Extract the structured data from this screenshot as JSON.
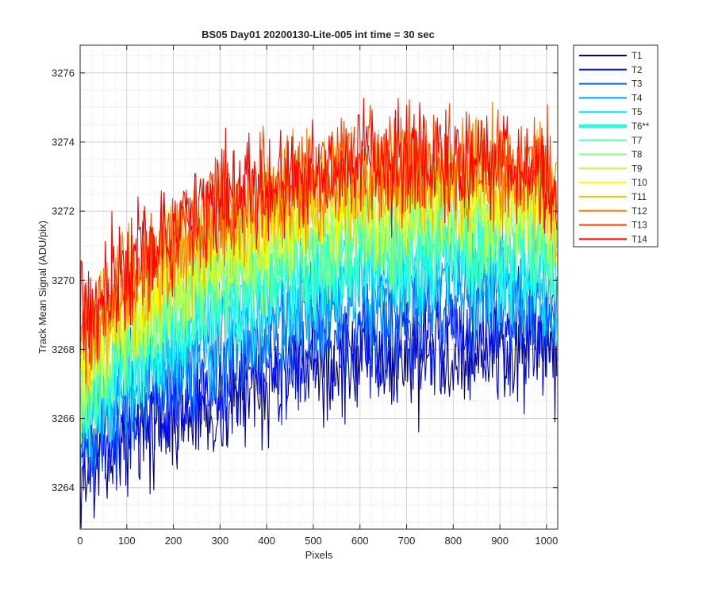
{
  "chart_data": {
    "type": "line",
    "title": "BS05 Day01 20200130-Lite-005 int time = 30 sec",
    "xlabel": "Pixels",
    "ylabel": "Track Mean Signal (ADU/pix)",
    "xlim": [
      0,
      1024
    ],
    "ylim": [
      3262.8,
      3276.8
    ],
    "x_ticks": [
      0,
      100,
      200,
      300,
      400,
      500,
      600,
      700,
      800,
      900,
      1000
    ],
    "y_ticks": [
      3264,
      3266,
      3268,
      3270,
      3272,
      3274,
      3276
    ],
    "grid": true,
    "minor_grid": true,
    "legend_position": "outside-top-right",
    "highlighted_series": "T6**",
    "series": [
      {
        "name": "T1",
        "color": "#00008f",
        "values": [
          [
            0,
            3264.3
          ],
          [
            100,
            3265.6
          ],
          [
            200,
            3266.0
          ],
          [
            300,
            3266.3
          ],
          [
            400,
            3267.1
          ],
          [
            500,
            3267.3
          ],
          [
            600,
            3267.6
          ],
          [
            700,
            3267.8
          ],
          [
            800,
            3268.0
          ],
          [
            900,
            3267.9
          ],
          [
            1000,
            3267.8
          ],
          [
            1023,
            3267.6
          ]
        ]
      },
      {
        "name": "T2",
        "color": "#0010ff",
        "values": [
          [
            0,
            3264.8
          ],
          [
            100,
            3266.0
          ],
          [
            200,
            3266.4
          ],
          [
            300,
            3266.8
          ],
          [
            400,
            3267.6
          ],
          [
            500,
            3267.9
          ],
          [
            600,
            3268.2
          ],
          [
            700,
            3268.4
          ],
          [
            800,
            3268.6
          ],
          [
            900,
            3268.5
          ],
          [
            1000,
            3268.4
          ],
          [
            1023,
            3268.2
          ]
        ]
      },
      {
        "name": "T3",
        "color": "#0060ff",
        "values": [
          [
            0,
            3265.2
          ],
          [
            100,
            3266.6
          ],
          [
            200,
            3267.3
          ],
          [
            300,
            3267.8
          ],
          [
            400,
            3268.5
          ],
          [
            500,
            3268.8
          ],
          [
            600,
            3269.0
          ],
          [
            700,
            3269.2
          ],
          [
            800,
            3269.4
          ],
          [
            900,
            3269.3
          ],
          [
            1000,
            3269.2
          ],
          [
            1023,
            3269.0
          ]
        ]
      },
      {
        "name": "T4",
        "color": "#00a0ff",
        "values": [
          [
            0,
            3265.6
          ],
          [
            100,
            3267.0
          ],
          [
            200,
            3267.8
          ],
          [
            300,
            3268.4
          ],
          [
            400,
            3269.0
          ],
          [
            500,
            3269.3
          ],
          [
            600,
            3269.6
          ],
          [
            700,
            3269.8
          ],
          [
            800,
            3269.9
          ],
          [
            900,
            3269.8
          ],
          [
            1000,
            3269.7
          ],
          [
            1023,
            3269.4
          ]
        ]
      },
      {
        "name": "T5",
        "color": "#00dfff",
        "values": [
          [
            0,
            3265.9
          ],
          [
            100,
            3267.5
          ],
          [
            200,
            3268.3
          ],
          [
            300,
            3269.0
          ],
          [
            400,
            3269.6
          ],
          [
            500,
            3270.0
          ],
          [
            600,
            3270.3
          ],
          [
            700,
            3270.4
          ],
          [
            800,
            3270.5
          ],
          [
            900,
            3270.4
          ],
          [
            1000,
            3270.2
          ],
          [
            1023,
            3269.9
          ]
        ]
      },
      {
        "name": "T6**",
        "color": "#20ffdf",
        "values": [
          [
            0,
            3266.1
          ],
          [
            100,
            3267.8
          ],
          [
            200,
            3268.7
          ],
          [
            300,
            3269.4
          ],
          [
            400,
            3270.0
          ],
          [
            500,
            3270.4
          ],
          [
            600,
            3270.7
          ],
          [
            700,
            3270.8
          ],
          [
            800,
            3270.9
          ],
          [
            900,
            3270.8
          ],
          [
            1000,
            3270.6
          ],
          [
            1023,
            3270.3
          ]
        ]
      },
      {
        "name": "T7",
        "color": "#50ffaf",
        "values": [
          [
            0,
            3266.4
          ],
          [
            100,
            3268.1
          ],
          [
            200,
            3269.1
          ],
          [
            300,
            3269.8
          ],
          [
            400,
            3270.4
          ],
          [
            500,
            3270.8
          ],
          [
            600,
            3271.1
          ],
          [
            700,
            3271.2
          ],
          [
            800,
            3271.3
          ],
          [
            900,
            3271.2
          ],
          [
            1000,
            3271.0
          ],
          [
            1023,
            3270.7
          ]
        ]
      },
      {
        "name": "T8",
        "color": "#80ff80",
        "values": [
          [
            0,
            3266.7
          ],
          [
            100,
            3268.4
          ],
          [
            200,
            3269.5
          ],
          [
            300,
            3270.2
          ],
          [
            400,
            3270.8
          ],
          [
            500,
            3271.2
          ],
          [
            600,
            3271.5
          ],
          [
            700,
            3271.6
          ],
          [
            800,
            3271.7
          ],
          [
            900,
            3271.6
          ],
          [
            1000,
            3271.4
          ],
          [
            1023,
            3271.1
          ]
        ]
      },
      {
        "name": "T9",
        "color": "#bfff40",
        "values": [
          [
            0,
            3267.0
          ],
          [
            100,
            3268.8
          ],
          [
            200,
            3269.9
          ],
          [
            300,
            3270.6
          ],
          [
            400,
            3271.2
          ],
          [
            500,
            3271.6
          ],
          [
            600,
            3271.9
          ],
          [
            700,
            3272.0
          ],
          [
            800,
            3272.1
          ],
          [
            900,
            3272.0
          ],
          [
            1000,
            3271.8
          ],
          [
            1023,
            3271.4
          ]
        ]
      },
      {
        "name": "T10",
        "color": "#ffff00",
        "values": [
          [
            0,
            3267.3
          ],
          [
            100,
            3269.1
          ],
          [
            200,
            3270.3
          ],
          [
            300,
            3271.0
          ],
          [
            400,
            3271.6
          ],
          [
            500,
            3272.0
          ],
          [
            600,
            3272.3
          ],
          [
            700,
            3272.4
          ],
          [
            800,
            3272.5
          ],
          [
            900,
            3272.4
          ],
          [
            1000,
            3272.2
          ],
          [
            1023,
            3271.8
          ]
        ]
      },
      {
        "name": "T11",
        "color": "#ffbf00",
        "values": [
          [
            0,
            3267.7
          ],
          [
            100,
            3269.5
          ],
          [
            200,
            3270.6
          ],
          [
            300,
            3271.4
          ],
          [
            400,
            3272.0
          ],
          [
            500,
            3272.4
          ],
          [
            600,
            3272.7
          ],
          [
            700,
            3272.8
          ],
          [
            800,
            3272.9
          ],
          [
            900,
            3272.8
          ],
          [
            1000,
            3272.6
          ],
          [
            1023,
            3272.1
          ]
        ]
      },
      {
        "name": "T12",
        "color": "#ff8000",
        "values": [
          [
            0,
            3268.1
          ],
          [
            100,
            3269.9
          ],
          [
            200,
            3271.0
          ],
          [
            300,
            3271.8
          ],
          [
            400,
            3272.4
          ],
          [
            500,
            3272.8
          ],
          [
            600,
            3273.1
          ],
          [
            700,
            3273.2
          ],
          [
            800,
            3273.3
          ],
          [
            900,
            3273.2
          ],
          [
            1000,
            3273.0
          ],
          [
            1023,
            3272.4
          ]
        ]
      },
      {
        "name": "T13",
        "color": "#ff4000",
        "values": [
          [
            0,
            3268.5
          ],
          [
            100,
            3270.2
          ],
          [
            200,
            3271.3
          ],
          [
            300,
            3272.1
          ],
          [
            400,
            3272.7
          ],
          [
            500,
            3273.1
          ],
          [
            600,
            3273.3
          ],
          [
            700,
            3273.5
          ],
          [
            800,
            3273.5
          ],
          [
            900,
            3273.4
          ],
          [
            1000,
            3273.2
          ],
          [
            1023,
            3272.6
          ]
        ]
      },
      {
        "name": "T14",
        "color": "#ff0000",
        "values": [
          [
            0,
            3268.9
          ],
          [
            100,
            3270.5
          ],
          [
            200,
            3271.5
          ],
          [
            300,
            3272.3
          ],
          [
            400,
            3272.8
          ],
          [
            500,
            3273.1
          ],
          [
            600,
            3273.3
          ],
          [
            700,
            3273.4
          ],
          [
            800,
            3273.5
          ],
          [
            900,
            3273.3
          ],
          [
            1000,
            3273.0
          ],
          [
            1023,
            3272.3
          ]
        ]
      }
    ]
  }
}
